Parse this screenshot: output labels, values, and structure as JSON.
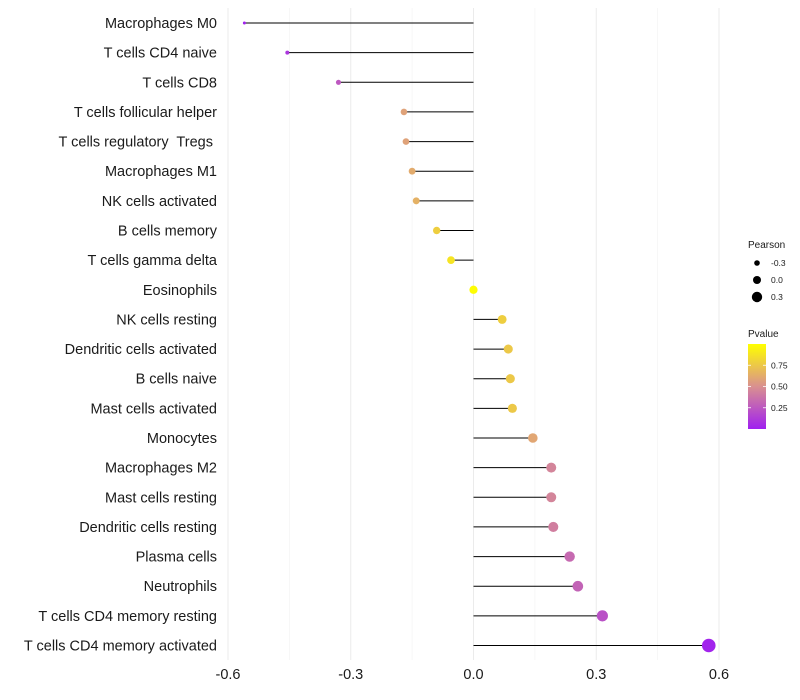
{
  "chart_data": {
    "type": "lollipop",
    "categories": [
      "Macrophages M0",
      "T cells CD4 naive",
      "T cells CD8",
      "T cells follicular helper",
      "T cells regulatory  Tregs ",
      "Macrophages M1",
      "NK cells activated",
      "B cells memory",
      "T cells gamma delta",
      "Eosinophils",
      "NK cells resting",
      "Dendritic cells activated",
      "B cells naive",
      "Mast cells activated",
      "Monocytes",
      "Macrophages M2",
      "Mast cells resting",
      "Dendritic cells resting",
      "Plasma cells",
      "Neutrophils",
      "T cells CD4 memory resting",
      "T cells CD4 memory activated"
    ],
    "pearson": [
      -0.56,
      -0.455,
      -0.33,
      -0.17,
      -0.165,
      -0.15,
      -0.14,
      -0.09,
      -0.055,
      0.0,
      0.07,
      0.085,
      0.09,
      0.095,
      0.145,
      0.19,
      0.19,
      0.195,
      0.235,
      0.255,
      0.315,
      0.575
    ],
    "pvalue": [
      0.01,
      0.1,
      0.25,
      0.58,
      0.58,
      0.62,
      0.65,
      0.78,
      0.88,
      0.99,
      0.78,
      0.75,
      0.75,
      0.75,
      0.6,
      0.45,
      0.45,
      0.42,
      0.33,
      0.3,
      0.22,
      0.02
    ],
    "x_ticks": [
      "-0.6",
      "-0.3",
      "0.0",
      "0.3",
      "0.6"
    ],
    "x_tick_values": [
      -0.6,
      -0.3,
      0.0,
      0.3,
      0.6
    ],
    "xlim": [
      -0.6,
      0.6
    ],
    "legend_size": {
      "title": "Pearson",
      "labels": [
        "-0.3",
        "0.0",
        "0.3"
      ],
      "values": [
        -0.3,
        0.0,
        0.3
      ]
    },
    "legend_color": {
      "title": "Pvalue",
      "labels": [
        "0.75",
        "0.50",
        "0.25"
      ],
      "values": [
        0.75,
        0.5,
        0.25
      ],
      "range": [
        0.0,
        1.0
      ],
      "low_color": "#a020f0",
      "high_color": "#ffff00"
    }
  }
}
